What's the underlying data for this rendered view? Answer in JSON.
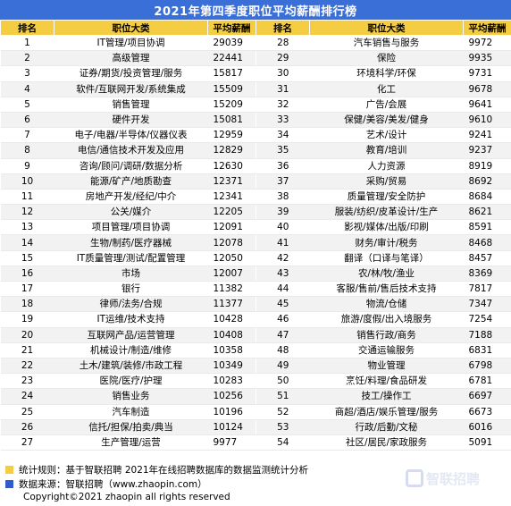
{
  "title": "2021年第四季度职位平均薪酬排行榜",
  "headers": {
    "rank": "排名",
    "job": "职位大类",
    "salary": "平均薪酬"
  },
  "rows": [
    {
      "l": {
        "rank": "1",
        "job": "IT管理/项目协调",
        "salary": "29039"
      },
      "r": {
        "rank": "28",
        "job": "汽车销售与服务",
        "salary": "9972"
      }
    },
    {
      "l": {
        "rank": "2",
        "job": "高级管理",
        "salary": "22441"
      },
      "r": {
        "rank": "29",
        "job": "保险",
        "salary": "9935"
      }
    },
    {
      "l": {
        "rank": "3",
        "job": "证券/期货/投资管理/服务",
        "salary": "15817"
      },
      "r": {
        "rank": "30",
        "job": "环境科学/环保",
        "salary": "9731"
      }
    },
    {
      "l": {
        "rank": "4",
        "job": "软件/互联网开发/系统集成",
        "salary": "15509"
      },
      "r": {
        "rank": "31",
        "job": "化工",
        "salary": "9678"
      }
    },
    {
      "l": {
        "rank": "5",
        "job": "销售管理",
        "salary": "15209"
      },
      "r": {
        "rank": "32",
        "job": "广告/会展",
        "salary": "9641"
      }
    },
    {
      "l": {
        "rank": "6",
        "job": "硬件开发",
        "salary": "15081"
      },
      "r": {
        "rank": "33",
        "job": "保健/美容/美发/健身",
        "salary": "9610"
      }
    },
    {
      "l": {
        "rank": "7",
        "job": "电子/电器/半导体/仪器仪表",
        "salary": "12959"
      },
      "r": {
        "rank": "34",
        "job": "艺术/设计",
        "salary": "9241"
      }
    },
    {
      "l": {
        "rank": "8",
        "job": "电信/通信技术开发及应用",
        "salary": "12829"
      },
      "r": {
        "rank": "35",
        "job": "教育/培训",
        "salary": "9237"
      }
    },
    {
      "l": {
        "rank": "9",
        "job": "咨询/顾问/调研/数据分析",
        "salary": "12630"
      },
      "r": {
        "rank": "36",
        "job": "人力资源",
        "salary": "8919"
      }
    },
    {
      "l": {
        "rank": "10",
        "job": "能源/矿产/地质勘查",
        "salary": "12371"
      },
      "r": {
        "rank": "37",
        "job": "采购/贸易",
        "salary": "8692"
      }
    },
    {
      "l": {
        "rank": "11",
        "job": "房地产开发/经纪/中介",
        "salary": "12341"
      },
      "r": {
        "rank": "38",
        "job": "质量管理/安全防护",
        "salary": "8684"
      }
    },
    {
      "l": {
        "rank": "12",
        "job": "公关/媒介",
        "salary": "12205"
      },
      "r": {
        "rank": "39",
        "job": "服装/纺织/皮革设计/生产",
        "salary": "8621"
      }
    },
    {
      "l": {
        "rank": "13",
        "job": "项目管理/项目协调",
        "salary": "12091"
      },
      "r": {
        "rank": "40",
        "job": "影视/媒体/出版/印刷",
        "salary": "8591"
      }
    },
    {
      "l": {
        "rank": "14",
        "job": "生物/制药/医疗器械",
        "salary": "12078"
      },
      "r": {
        "rank": "41",
        "job": "财务/审计/税务",
        "salary": "8468"
      }
    },
    {
      "l": {
        "rank": "15",
        "job": "IT质量管理/测试/配置管理",
        "salary": "12050"
      },
      "r": {
        "rank": "42",
        "job": "翻译（口译与笔译）",
        "salary": "8457"
      }
    },
    {
      "l": {
        "rank": "16",
        "job": "市场",
        "salary": "12007"
      },
      "r": {
        "rank": "43",
        "job": "农/林/牧/渔业",
        "salary": "8369"
      }
    },
    {
      "l": {
        "rank": "17",
        "job": "银行",
        "salary": "11382"
      },
      "r": {
        "rank": "44",
        "job": "客服/售前/售后技术支持",
        "salary": "7817"
      }
    },
    {
      "l": {
        "rank": "18",
        "job": "律师/法务/合规",
        "salary": "11377"
      },
      "r": {
        "rank": "45",
        "job": "物流/仓储",
        "salary": "7347"
      }
    },
    {
      "l": {
        "rank": "19",
        "job": "IT运维/技术支持",
        "salary": "10428"
      },
      "r": {
        "rank": "46",
        "job": "旅游/度假/出入境服务",
        "salary": "7254"
      }
    },
    {
      "l": {
        "rank": "20",
        "job": "互联网产品/运营管理",
        "salary": "10408"
      },
      "r": {
        "rank": "47",
        "job": "销售行政/商务",
        "salary": "7188"
      }
    },
    {
      "l": {
        "rank": "21",
        "job": "机械设计/制造/维修",
        "salary": "10358"
      },
      "r": {
        "rank": "48",
        "job": "交通运输服务",
        "salary": "6831"
      }
    },
    {
      "l": {
        "rank": "22",
        "job": "土木/建筑/装修/市政工程",
        "salary": "10349"
      },
      "r": {
        "rank": "49",
        "job": "物业管理",
        "salary": "6798"
      }
    },
    {
      "l": {
        "rank": "23",
        "job": "医院/医疗/护理",
        "salary": "10283"
      },
      "r": {
        "rank": "50",
        "job": "烹饪/料理/食品研发",
        "salary": "6781"
      }
    },
    {
      "l": {
        "rank": "24",
        "job": "销售业务",
        "salary": "10256"
      },
      "r": {
        "rank": "51",
        "job": "技工/操作工",
        "salary": "6697"
      }
    },
    {
      "l": {
        "rank": "25",
        "job": "汽车制造",
        "salary": "10196"
      },
      "r": {
        "rank": "52",
        "job": "商超/酒店/娱乐管理/服务",
        "salary": "6673"
      }
    },
    {
      "l": {
        "rank": "26",
        "job": "信托/担保/拍卖/典当",
        "salary": "10124"
      },
      "r": {
        "rank": "53",
        "job": "行政/后勤/文秘",
        "salary": "6016"
      }
    },
    {
      "l": {
        "rank": "27",
        "job": "生产管理/运营",
        "salary": "9977"
      },
      "r": {
        "rank": "54",
        "job": "社区/居民/家政服务",
        "salary": "5091"
      }
    }
  ],
  "footer": {
    "rule_text": "统计规则：基于智联招聘 2021年在线招聘数据库的数据监测统计分析",
    "source_text": "数据来源：智联招聘（www.zhaopin.com）",
    "copyright": "Copyright©2021 zhaopin all rights reserved",
    "logo_text": "智联招聘"
  },
  "colors": {
    "title_bg": "#3a6fd8",
    "header_bg": "#f5cd43",
    "rule_marker": "#f5cd43",
    "source_marker": "#2f5bd0"
  }
}
